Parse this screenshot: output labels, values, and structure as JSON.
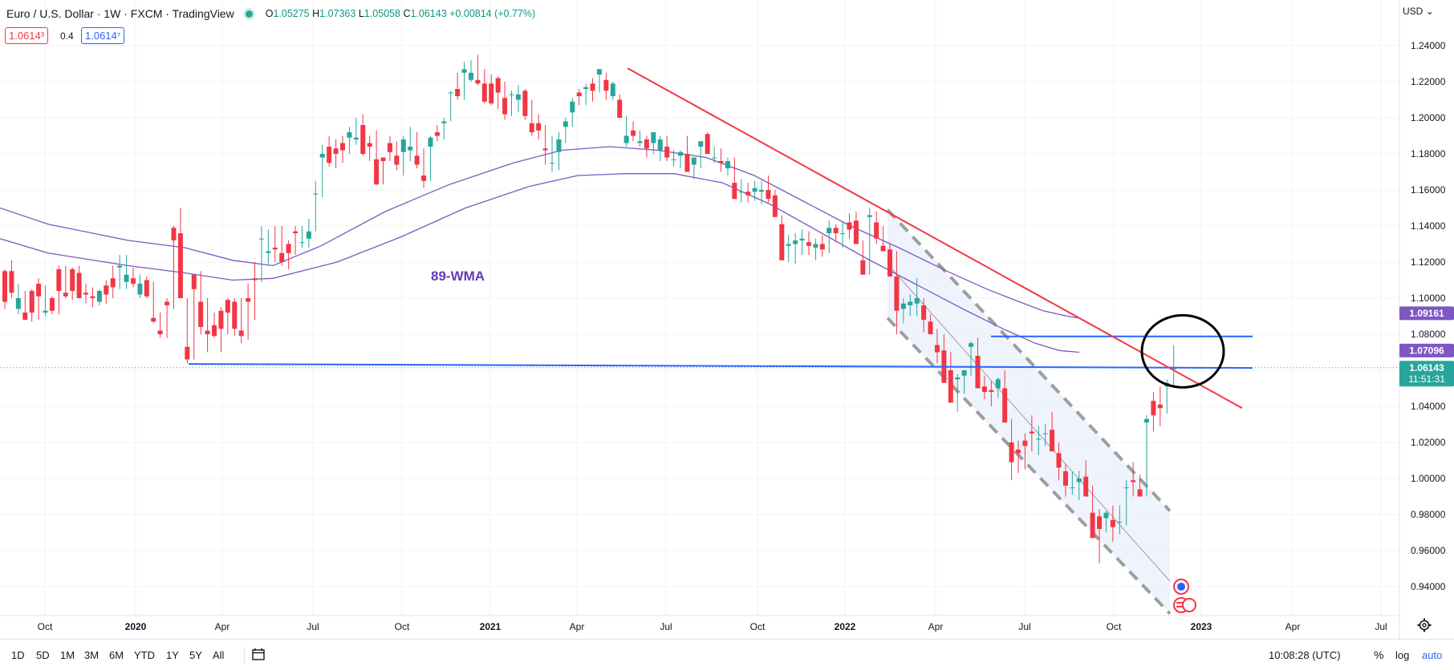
{
  "header": {
    "symbol": "Euro / U.S. Dollar · 1W · FXCM · TradingView",
    "open_label": "O",
    "open": "1.05275",
    "high_label": "H",
    "high": "1.07363",
    "low_label": "L",
    "low": "1.05058",
    "close_label": "C",
    "close": "1.06143",
    "change": "+0.00814 (+0.77%)",
    "sell_price": "1.0614³",
    "spread": "0.4",
    "buy_price": "1.0614⁷"
  },
  "currency": "USD",
  "annotation_label": "89-WMA",
  "colors": {
    "up": "#26a69a",
    "down": "#f23645",
    "wma": "#7e57c2",
    "trendline": "#f23645",
    "support": "#2962ff",
    "channel": "#9e9e9e",
    "label": "#673ab7"
  },
  "chart_data": {
    "type": "candlestick",
    "timeframe": "1W",
    "y_axis": {
      "ticks": [
        "1.24000",
        "1.22000",
        "1.20000",
        "1.18000",
        "1.16000",
        "1.14000",
        "1.12000",
        "1.10000",
        "1.08000",
        "1.06000",
        "1.04000",
        "1.02000",
        "1.00000",
        "0.98000",
        "0.96000",
        "0.94000"
      ],
      "range": [
        0.925,
        1.25
      ]
    },
    "x_axis": {
      "ticks": [
        "Oct",
        "2020",
        "Apr",
        "Jul",
        "Oct",
        "2021",
        "Apr",
        "Jul",
        "Oct",
        "2022",
        "Apr",
        "Jul",
        "Oct",
        "2023",
        "Apr",
        "Jul"
      ]
    },
    "price_labels": [
      {
        "text": "1.09161",
        "value": 1.09161,
        "color": "#7e57c2"
      },
      {
        "text": "1.07096",
        "value": 1.07096,
        "color": "#7e57c2"
      },
      {
        "text": "1.06143",
        "value": 1.06143,
        "color": "#26a69a",
        "timer": "11:51:31"
      }
    ],
    "candles": [
      [
        1.1,
        1.116,
        1.115,
        1.094,
        1.098
      ],
      [
        1.098,
        1.121,
        1.115,
        1.1,
        1.103
      ],
      [
        1.103,
        1.108,
        1.094,
        1.091,
        1.1
      ],
      [
        1.1,
        1.104,
        1.092,
        1.088,
        1.088
      ],
      [
        1.088,
        1.105,
        1.104,
        1.087,
        1.092
      ],
      [
        1.092,
        1.111,
        1.108,
        1.088,
        1.101
      ],
      [
        1.101,
        1.107,
        1.092,
        1.09,
        1.093
      ],
      [
        1.093,
        1.101,
        1.1,
        1.091,
        1.093
      ],
      [
        1.093,
        1.118,
        1.116,
        1.091,
        1.104
      ],
      [
        1.104,
        1.118,
        1.103,
        1.1,
        1.101
      ],
      [
        1.101,
        1.117,
        1.116,
        1.099,
        1.104
      ],
      [
        1.104,
        1.118,
        1.114,
        1.1,
        1.1
      ],
      [
        1.1,
        1.108,
        1.103,
        1.097,
        1.102
      ],
      [
        1.102,
        1.106,
        1.101,
        1.095,
        1.1
      ],
      [
        1.1,
        1.105,
        1.098,
        1.096,
        1.104
      ],
      [
        1.104,
        1.11,
        1.107,
        1.097,
        1.102
      ],
      [
        1.102,
        1.118,
        1.111,
        1.1,
        1.106
      ],
      [
        1.106,
        1.124,
        1.117,
        1.105,
        1.118
      ],
      [
        1.118,
        1.124,
        1.109,
        1.105,
        1.113
      ],
      [
        1.113,
        1.117,
        1.111,
        1.106,
        1.108
      ],
      [
        1.108,
        1.113,
        1.102,
        1.1,
        1.108
      ],
      [
        1.108,
        1.112,
        1.11,
        1.1,
        1.101
      ],
      [
        1.101,
        1.109,
        1.089,
        1.086,
        1.087
      ],
      [
        1.087,
        1.092,
        1.082,
        1.078,
        1.08
      ],
      [
        1.08,
        1.1,
        1.098,
        1.078,
        1.096
      ],
      [
        1.096,
        1.14,
        1.139,
        1.094,
        1.132
      ],
      [
        1.132,
        1.15,
        1.136,
        1.1,
        1.1
      ],
      [
        1.1,
        1.1,
        1.073,
        1.064,
        1.066
      ],
      [
        1.066,
        1.11,
        1.113,
        1.066,
        1.105
      ],
      [
        1.105,
        1.115,
        1.098,
        1.08,
        1.084
      ],
      [
        1.084,
        1.1,
        1.082,
        1.07,
        1.08
      ],
      [
        1.08,
        1.092,
        1.085,
        1.078,
        1.079
      ],
      [
        1.079,
        1.095,
        1.093,
        1.07,
        1.083
      ],
      [
        1.083,
        1.1,
        1.099,
        1.08,
        1.092
      ],
      [
        1.092,
        1.1,
        1.098,
        1.079,
        1.083
      ],
      [
        1.083,
        1.1,
        1.082,
        1.075,
        1.079
      ],
      [
        1.079,
        1.108,
        1.1,
        1.077,
        1.098
      ],
      [
        1.098,
        1.12,
        1.111,
        1.088,
        1.11
      ],
      [
        1.11,
        1.14,
        1.133,
        1.109,
        1.133
      ],
      [
        1.133,
        1.138,
        1.125,
        1.119,
        1.126
      ],
      [
        1.126,
        1.14,
        1.128,
        1.12,
        1.127
      ],
      [
        1.127,
        1.14,
        1.125,
        1.118,
        1.12
      ],
      [
        1.12,
        1.132,
        1.13,
        1.116,
        1.125
      ],
      [
        1.125,
        1.14,
        1.137,
        1.124,
        1.136
      ],
      [
        1.136,
        1.14,
        1.131,
        1.128,
        1.131
      ],
      [
        1.131,
        1.144,
        1.133,
        1.128,
        1.137
      ],
      [
        1.137,
        1.165,
        1.158,
        1.137,
        1.158
      ],
      [
        1.158,
        1.185,
        1.178,
        1.156,
        1.18
      ],
      [
        1.18,
        1.19,
        1.184,
        1.173,
        1.175
      ],
      [
        1.175,
        1.188,
        1.183,
        1.172,
        1.18
      ],
      [
        1.18,
        1.19,
        1.186,
        1.175,
        1.182
      ],
      [
        1.182,
        1.195,
        1.189,
        1.18,
        1.192
      ],
      [
        1.192,
        1.2,
        1.188,
        1.185,
        1.189
      ],
      [
        1.189,
        1.202,
        1.196,
        1.179,
        1.18
      ],
      [
        1.18,
        1.19,
        1.186,
        1.176,
        1.184
      ],
      [
        1.184,
        1.193,
        1.177,
        1.175,
        1.163
      ],
      [
        1.163,
        1.178,
        1.178,
        1.163,
        1.176
      ],
      [
        1.176,
        1.19,
        1.186,
        1.176,
        1.181
      ],
      [
        1.181,
        1.187,
        1.179,
        1.171,
        1.174
      ],
      [
        1.174,
        1.19,
        1.181,
        1.168,
        1.188
      ],
      [
        1.188,
        1.195,
        1.182,
        1.176,
        1.184
      ],
      [
        1.184,
        1.192,
        1.179,
        1.172,
        1.174
      ],
      [
        1.174,
        1.183,
        1.168,
        1.161,
        1.165
      ],
      [
        1.165,
        1.19,
        1.184,
        1.165,
        1.189
      ],
      [
        1.189,
        1.196,
        1.192,
        1.187,
        1.19
      ],
      [
        1.19,
        1.2,
        1.197,
        1.188,
        1.198
      ],
      [
        1.198,
        1.215,
        1.214,
        1.198,
        1.214
      ],
      [
        1.214,
        1.225,
        1.216,
        1.21,
        1.212
      ],
      [
        1.212,
        1.231,
        1.225,
        1.21,
        1.227
      ],
      [
        1.227,
        1.232,
        1.221,
        1.22,
        1.225
      ],
      [
        1.225,
        1.235,
        1.221,
        1.218,
        1.219
      ],
      [
        1.219,
        1.227,
        1.219,
        1.208,
        1.209
      ],
      [
        1.209,
        1.224,
        1.219,
        1.207,
        1.208
      ],
      [
        1.208,
        1.223,
        1.222,
        1.205,
        1.214
      ],
      [
        1.214,
        1.22,
        1.211,
        1.199,
        1.202
      ],
      [
        1.202,
        1.215,
        1.213,
        1.201,
        1.213
      ],
      [
        1.213,
        1.218,
        1.21,
        1.203,
        1.213
      ],
      [
        1.213,
        1.216,
        1.215,
        1.199,
        1.201
      ],
      [
        1.201,
        1.21,
        1.197,
        1.19,
        1.192
      ],
      [
        1.192,
        1.202,
        1.197,
        1.188,
        1.193
      ],
      [
        1.193,
        1.196,
        1.183,
        1.174,
        1.182
      ],
      [
        1.182,
        1.19,
        1.175,
        1.17,
        1.175
      ],
      [
        1.175,
        1.192,
        1.181,
        1.171,
        1.188
      ],
      [
        1.188,
        1.2,
        1.195,
        1.186,
        1.198
      ],
      [
        1.198,
        1.211,
        1.203,
        1.195,
        1.209
      ],
      [
        1.209,
        1.216,
        1.214,
        1.207,
        1.212
      ],
      [
        1.212,
        1.219,
        1.216,
        1.207,
        1.217
      ],
      [
        1.217,
        1.222,
        1.219,
        1.209,
        1.215
      ],
      [
        1.215,
        1.227,
        1.224,
        1.214,
        1.227
      ],
      [
        1.227,
        1.225,
        1.221,
        1.21,
        1.215
      ],
      [
        1.215,
        1.22,
        1.212,
        1.21,
        1.219
      ],
      [
        1.219,
        1.213,
        1.21,
        1.2,
        1.2
      ],
      [
        1.2,
        1.201,
        1.186,
        1.184,
        1.19
      ],
      [
        1.19,
        1.198,
        1.193,
        1.187,
        1.19
      ],
      [
        1.19,
        1.193,
        1.186,
        1.184,
        1.187
      ],
      [
        1.187,
        1.19,
        1.188,
        1.178,
        1.183
      ],
      [
        1.183,
        1.19,
        1.186,
        1.18,
        1.192
      ],
      [
        1.192,
        1.19,
        1.182,
        1.176,
        1.188
      ],
      [
        1.188,
        1.19,
        1.184,
        1.176,
        1.178
      ],
      [
        1.178,
        1.182,
        1.177,
        1.173,
        1.177
      ],
      [
        1.177,
        1.182,
        1.179,
        1.172,
        1.181
      ],
      [
        1.181,
        1.19,
        1.18,
        1.172,
        1.17
      ],
      [
        1.17,
        1.178,
        1.174,
        1.166,
        1.178
      ],
      [
        1.178,
        1.186,
        1.184,
        1.172,
        1.187
      ],
      [
        1.187,
        1.192,
        1.191,
        1.184,
        1.18
      ],
      [
        1.18,
        1.184,
        1.178,
        1.175,
        1.178
      ],
      [
        1.178,
        1.183,
        1.176,
        1.17,
        1.175
      ],
      [
        1.175,
        1.178,
        1.172,
        1.168,
        1.176
      ],
      [
        1.176,
        1.178,
        1.164,
        1.159,
        1.155
      ],
      [
        1.155,
        1.166,
        1.159,
        1.153,
        1.159
      ],
      [
        1.159,
        1.164,
        1.159,
        1.153,
        1.157
      ],
      [
        1.157,
        1.165,
        1.159,
        1.154,
        1.161
      ],
      [
        1.161,
        1.165,
        1.159,
        1.152,
        1.16
      ],
      [
        1.16,
        1.168,
        1.16,
        1.153,
        1.155
      ],
      [
        1.155,
        1.16,
        1.157,
        1.149,
        1.145
      ],
      [
        1.145,
        1.146,
        1.141,
        1.129,
        1.121
      ],
      [
        1.121,
        1.135,
        1.129,
        1.12,
        1.13
      ],
      [
        1.13,
        1.136,
        1.13,
        1.119,
        1.132
      ],
      [
        1.132,
        1.138,
        1.132,
        1.124,
        1.133
      ],
      [
        1.133,
        1.137,
        1.131,
        1.124,
        1.129
      ],
      [
        1.129,
        1.133,
        1.128,
        1.121,
        1.13
      ],
      [
        1.13,
        1.135,
        1.13,
        1.123,
        1.127
      ],
      [
        1.127,
        1.143,
        1.136,
        1.125,
        1.139
      ],
      [
        1.139,
        1.141,
        1.139,
        1.131,
        1.136
      ],
      [
        1.136,
        1.142,
        1.136,
        1.128,
        1.136
      ],
      [
        1.136,
        1.147,
        1.142,
        1.133,
        1.138
      ],
      [
        1.138,
        1.148,
        1.143,
        1.131,
        1.13
      ],
      [
        1.13,
        1.132,
        1.121,
        1.117,
        1.113
      ],
      [
        1.113,
        1.15,
        1.145,
        1.113,
        1.146
      ],
      [
        1.146,
        1.148,
        1.142,
        1.13,
        1.133
      ],
      [
        1.133,
        1.14,
        1.129,
        1.127,
        1.126
      ],
      [
        1.126,
        1.13,
        1.127,
        1.116,
        1.112
      ],
      [
        1.112,
        1.126,
        1.112,
        1.08,
        1.093
      ],
      [
        1.093,
        1.1,
        1.094,
        1.086,
        1.097
      ],
      [
        1.097,
        1.102,
        1.096,
        1.09,
        1.098
      ],
      [
        1.098,
        1.111,
        1.097,
        1.09,
        1.1
      ],
      [
        1.1,
        1.1,
        1.096,
        1.081,
        1.088
      ],
      [
        1.088,
        1.091,
        1.087,
        1.08,
        1.08
      ],
      [
        1.08,
        1.083,
        1.074,
        1.064,
        1.07
      ],
      [
        1.07,
        1.08,
        1.071,
        1.055,
        1.053
      ],
      [
        1.053,
        1.07,
        1.06,
        1.046,
        1.042
      ],
      [
        1.042,
        1.058,
        1.055,
        1.037,
        1.056
      ],
      [
        1.056,
        1.06,
        1.057,
        1.047,
        1.06
      ],
      [
        1.06,
        1.076,
        1.073,
        1.057,
        1.075
      ],
      [
        1.075,
        1.078,
        1.068,
        1.05,
        1.05
      ],
      [
        1.05,
        1.057,
        1.051,
        1.044,
        1.048
      ],
      [
        1.048,
        1.054,
        1.049,
        1.04,
        1.048
      ],
      [
        1.048,
        1.056,
        1.05,
        1.045,
        1.055
      ],
      [
        1.055,
        1.06,
        1.05,
        1.032,
        1.031
      ],
      [
        1.031,
        1.033,
        1.02,
        0.999,
        1.009
      ],
      [
        1.009,
        1.021,
        1.016,
        1.003,
        1.014
      ],
      [
        1.014,
        1.025,
        1.021,
        1.005,
        1.018
      ],
      [
        1.018,
        1.035,
        1.026,
        1.015,
        1.025
      ],
      [
        1.025,
        1.029,
        1.022,
        1.013,
        1.022
      ],
      [
        1.022,
        1.03,
        1.025,
        1.018,
        1.025
      ],
      [
        1.025,
        1.037,
        1.027,
        1.016,
        1.015
      ],
      [
        1.015,
        1.02,
        1.014,
        0.999,
        1.006
      ],
      [
        1.006,
        1.008,
        1.004,
        0.99,
        0.996
      ],
      [
        0.996,
        1.004,
        0.995,
        0.991,
        0.995
      ],
      [
        0.995,
        1.004,
        0.998,
        0.988,
        1.0
      ],
      [
        1.0,
        1.01,
        1.001,
        0.995,
        0.99
      ],
      [
        0.99,
        0.996,
        0.981,
        0.968,
        0.967
      ],
      [
        0.967,
        0.983,
        0.979,
        0.953,
        0.972
      ],
      [
        0.972,
        0.982,
        0.978,
        0.97,
        0.981
      ],
      [
        0.981,
        0.985,
        0.977,
        0.965,
        0.973
      ],
      [
        0.973,
        0.985,
        0.976,
        0.969,
        0.976
      ],
      [
        0.976,
        0.999,
        0.995,
        0.974,
        0.995
      ],
      [
        0.995,
        1.009,
        0.999,
        0.99,
        0.998
      ],
      [
        0.998,
        1.002,
        0.994,
        0.99,
        0.99
      ],
      [
        0.99,
        1.035,
        1.031,
        0.99,
        1.033
      ],
      [
        1.033,
        1.048,
        1.043,
        1.026,
        1.035
      ],
      [
        1.035,
        1.051,
        1.041,
        1.029,
        1.039
      ],
      [
        1.039,
        1.055,
        1.051,
        1.036,
        1.053
      ],
      [
        1.053,
        1.074,
        1.061,
        1.051,
        1.061
      ]
    ],
    "series": [
      {
        "name": "89-WMA"
      }
    ]
  },
  "timeframes": [
    "1D",
    "5D",
    "1M",
    "3M",
    "6M",
    "YTD",
    "1Y",
    "5Y",
    "All"
  ],
  "footer": {
    "clock": "10:08:28 (UTC)",
    "percent": "%",
    "log": "log",
    "auto": "auto"
  },
  "icons": {
    "calendar": "calendar-range-icon",
    "settings": "gear-icon",
    "event_globe": "globe-event-icon",
    "event_flag": "us-flag-event-icon"
  }
}
